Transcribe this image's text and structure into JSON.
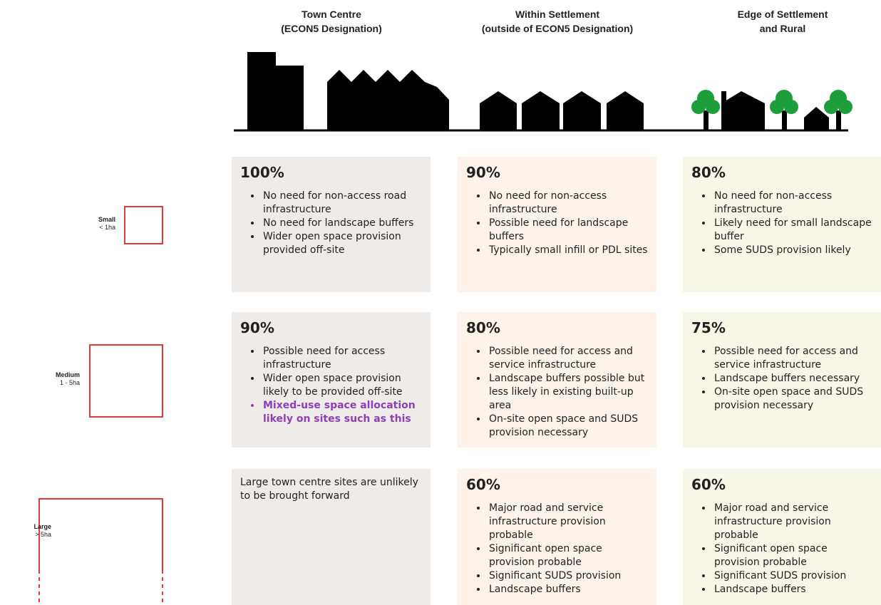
{
  "header": {
    "columns": [
      [
        "Town Centre",
        "(ECON5 Designation)"
      ],
      [
        "Within Settlement",
        "(outside of ECON5 Designation)"
      ],
      [
        "Edge of Settlement",
        "and Rural"
      ]
    ]
  },
  "rows": [
    {
      "label": "Small",
      "size": "< 1ha",
      "cells": [
        {
          "percent": "100%",
          "bullets": [
            "No need for non-access road infrastructure",
            "No need for landscape buffers",
            "Wider open space provision provided off-site"
          ]
        },
        {
          "percent": "90%",
          "bullets": [
            "No need for non-access infrastructure",
            "Possible need for landscape buffers",
            "Typically small infill or PDL sites"
          ]
        },
        {
          "percent": "80%",
          "bullets": [
            "No need for non-access infrastructure",
            "Likely need for small landscape buffer",
            "Some SUDS provision likely"
          ]
        }
      ]
    },
    {
      "label": "Medium",
      "size": "1 - 5ha",
      "cells": [
        {
          "percent": "90%",
          "bullets": [
            "Possible need for access infrastructure",
            "Wider open space provision likely to be provided off-site"
          ],
          "emphasis": {
            "text": "Mixed-use space allocation likely on sites such as this",
            "color": "#8e3fb5"
          }
        },
        {
          "percent": "80%",
          "bullets": [
            "Possible need for access and service infrastructure",
            "Landscape buffers possible but less likely in existing built-up area",
            "On-site open space and SUDS provision necessary"
          ]
        },
        {
          "percent": "75%",
          "bullets": [
            "Possible need for access and service infrastructure",
            "Landscape buffers necessary",
            "On-site open space and SUDS provision necessary"
          ]
        }
      ]
    },
    {
      "label": "Large",
      "size": "> 5ha",
      "cells": [
        {
          "note": "Large town centre sites are unlikely to be brought forward"
        },
        {
          "percent": "60%",
          "bullets": [
            "Major road and service infrastructure provision probable",
            "Significant open space provision probable",
            "Significant SUDS provision",
            "Landscape buffers"
          ]
        },
        {
          "percent": "60%",
          "bullets": [
            "Major road and service infrastructure provision probable",
            "Significant open space provision probable",
            "Significant SUDS provision",
            "Landscape buffers"
          ]
        }
      ]
    }
  ]
}
